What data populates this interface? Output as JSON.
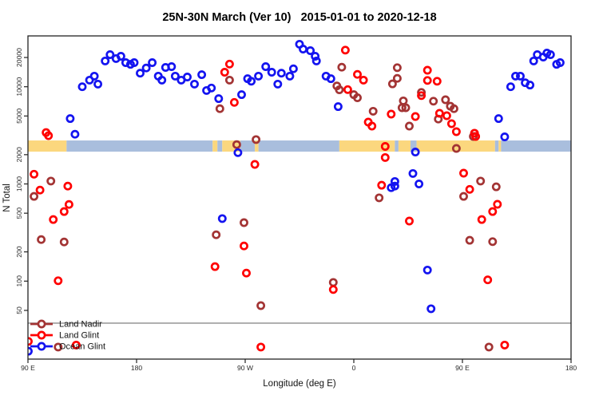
{
  "chart_data": {
    "type": "scatter",
    "title": "25N-30N March (Ver 10)   2015-01-01 to 2020-12-18",
    "xlabel": "Longitude (deg E)",
    "ylabel": "N Total",
    "x_axis": {
      "range": [
        90,
        540
      ],
      "ticks": [
        90,
        180,
        270,
        360,
        450,
        540
      ],
      "tick_labels": [
        "90 E",
        "180",
        "90 W",
        "0",
        "90 E",
        "180"
      ]
    },
    "y_axis": {
      "scale": "log10",
      "range": [
        15,
        34000
      ],
      "ticks": [
        50,
        100,
        200,
        500,
        1000,
        2000,
        5000,
        10000,
        20000
      ],
      "tick_labels": [
        "50",
        "100",
        "200",
        "500",
        "1000",
        "2000",
        "5000",
        "10000",
        "20000"
      ]
    },
    "threshold_line_value": 37,
    "map_band": {
      "description": "land/ocean strip along 25N-30N",
      "value_top": 2800,
      "value_bottom": 2150,
      "land_color": "#FBD77E",
      "ocean_color": "#A9BEDD",
      "segments": [
        {
          "from": 90,
          "to": 122,
          "type": "land"
        },
        {
          "from": 122,
          "to": 243,
          "type": "ocean"
        },
        {
          "from": 243,
          "to": 247,
          "type": "land"
        },
        {
          "from": 247,
          "to": 251,
          "type": "ocean"
        },
        {
          "from": 251,
          "to": 266,
          "type": "land"
        },
        {
          "from": 266,
          "to": 278,
          "type": "ocean"
        },
        {
          "from": 278,
          "to": 281,
          "type": "land"
        },
        {
          "from": 281,
          "to": 348,
          "type": "ocean"
        },
        {
          "from": 348,
          "to": 394,
          "type": "land"
        },
        {
          "from": 394,
          "to": 397,
          "type": "ocean"
        },
        {
          "from": 397,
          "to": 407,
          "type": "land"
        },
        {
          "from": 407,
          "to": 412,
          "type": "ocean"
        },
        {
          "from": 412,
          "to": 477,
          "type": "land"
        },
        {
          "from": 477,
          "to": 480,
          "type": "ocean"
        },
        {
          "from": 480,
          "to": 482,
          "type": "land"
        },
        {
          "from": 482,
          "to": 540,
          "type": "ocean"
        }
      ]
    },
    "legend_position": "bottom-left",
    "series": [
      {
        "name": "Land Nadir",
        "color": "#A33434",
        "marker": "open-circle",
        "points": [
          [
            257,
            11700
          ],
          [
            249,
            5950
          ],
          [
            279,
            2860
          ],
          [
            263,
            2540
          ],
          [
            350,
            15900
          ],
          [
            346,
            10200
          ],
          [
            348,
            9300
          ],
          [
            360,
            8300
          ],
          [
            363,
            7700
          ],
          [
            376,
            5600
          ],
          [
            396,
            15700
          ],
          [
            396,
            12200
          ],
          [
            392,
            10700
          ],
          [
            401,
            7150
          ],
          [
            400,
            6080
          ],
          [
            403,
            6080
          ],
          [
            406,
            3940
          ],
          [
            416,
            8750
          ],
          [
            426,
            7100
          ],
          [
            436,
            7350
          ],
          [
            440,
            6300
          ],
          [
            443,
            5950
          ],
          [
            445,
            2320
          ],
          [
            459,
            3080
          ],
          [
            430,
            4650
          ],
          [
            109,
            1070
          ],
          [
            95,
            745
          ],
          [
            101,
            268
          ],
          [
            120,
            253
          ],
          [
            269,
            400
          ],
          [
            246,
            300
          ],
          [
            381,
            720
          ],
          [
            465,
            1070
          ],
          [
            451,
            745
          ],
          [
            478,
            935
          ],
          [
            456,
            263
          ],
          [
            475,
            255
          ],
          [
            283,
            56
          ],
          [
            343,
            97
          ],
          [
            115,
            21
          ],
          [
            472,
            21
          ]
        ]
      },
      {
        "name": "Land Glint",
        "color": "#FF0000",
        "marker": "open-circle",
        "points": [
          [
            105,
            3380
          ],
          [
            107,
            3140
          ],
          [
            353,
            23800
          ],
          [
            363,
            13400
          ],
          [
            368,
            11700
          ],
          [
            355,
            9350
          ],
          [
            372,
            4330
          ],
          [
            375,
            3940
          ],
          [
            391,
            5230
          ],
          [
            411,
            4940
          ],
          [
            416,
            8100
          ],
          [
            421,
            14800
          ],
          [
            421,
            11600
          ],
          [
            429,
            11400
          ],
          [
            431,
            5330
          ],
          [
            437,
            5030
          ],
          [
            441,
            4170
          ],
          [
            445,
            3450
          ],
          [
            460,
            3330
          ],
          [
            461,
            3080
          ],
          [
            386,
            2430
          ],
          [
            386,
            1870
          ],
          [
            95,
            1260
          ],
          [
            100,
            865
          ],
          [
            123,
            950
          ],
          [
            124,
            615
          ],
          [
            120,
            520
          ],
          [
            111,
            430
          ],
          [
            278,
            1590
          ],
          [
            269,
            230
          ],
          [
            245,
            141
          ],
          [
            271,
            121
          ],
          [
            383,
            970
          ],
          [
            406,
            415
          ],
          [
            451,
            1290
          ],
          [
            456,
            880
          ],
          [
            479,
            618
          ],
          [
            475,
            520
          ],
          [
            466,
            430
          ],
          [
            115,
            101
          ],
          [
            343,
            82
          ],
          [
            471,
            103
          ],
          [
            130,
            22
          ],
          [
            283,
            21
          ],
          [
            485,
            22
          ],
          [
            90.3,
            24
          ],
          [
            257,
            17100
          ],
          [
            253,
            14100
          ],
          [
            261,
            6900
          ]
        ]
      },
      {
        "name": "Ocean Glint",
        "color": "#1414F0",
        "marker": "open-circle",
        "points": [
          [
            125,
            4700
          ],
          [
            129,
            3250
          ],
          [
            135,
            10000
          ],
          [
            141,
            11700
          ],
          [
            145,
            12850
          ],
          [
            148,
            10650
          ],
          [
            154,
            18400
          ],
          [
            158,
            21400
          ],
          [
            163,
            19500
          ],
          [
            167,
            20600
          ],
          [
            171,
            17700
          ],
          [
            175,
            17000
          ],
          [
            178,
            17700
          ],
          [
            183,
            13800
          ],
          [
            188,
            15600
          ],
          [
            193,
            17700
          ],
          [
            198,
            12850
          ],
          [
            201,
            11700
          ],
          [
            204,
            15800
          ],
          [
            209,
            16100
          ],
          [
            212,
            12850
          ],
          [
            217,
            11700
          ],
          [
            222,
            12600
          ],
          [
            228,
            10650
          ],
          [
            234,
            13300
          ],
          [
            238,
            9150
          ],
          [
            242,
            9700
          ],
          [
            248,
            7550
          ],
          [
            267,
            8300
          ],
          [
            272,
            12100
          ],
          [
            275,
            11400
          ],
          [
            281,
            12850
          ],
          [
            287,
            16100
          ],
          [
            292,
            14100
          ],
          [
            297,
            10650
          ],
          [
            300,
            13800
          ],
          [
            307,
            12850
          ],
          [
            310,
            15300
          ],
          [
            315,
            27400
          ],
          [
            318,
            24400
          ],
          [
            324,
            23500
          ],
          [
            328,
            20600
          ],
          [
            329,
            18400
          ],
          [
            337,
            12850
          ],
          [
            341,
            12100
          ],
          [
            347,
            6250
          ],
          [
            264,
            2100
          ],
          [
            411,
            2130
          ],
          [
            409,
            1280
          ],
          [
            394,
            1060
          ],
          [
            394,
            950
          ],
          [
            391,
            915
          ],
          [
            414,
            1000
          ],
          [
            251,
            440
          ],
          [
            421,
            130
          ],
          [
            424,
            52
          ],
          [
            485,
            3050
          ],
          [
            480,
            4700
          ],
          [
            490,
            10000
          ],
          [
            494,
            12850
          ],
          [
            498,
            12850
          ],
          [
            502,
            11000
          ],
          [
            506,
            10400
          ],
          [
            509,
            18400
          ],
          [
            512,
            21400
          ],
          [
            517,
            20200
          ],
          [
            520,
            22200
          ],
          [
            523,
            21400
          ],
          [
            528,
            17000
          ],
          [
            531,
            17700
          ],
          [
            90.3,
            19
          ]
        ]
      }
    ]
  }
}
